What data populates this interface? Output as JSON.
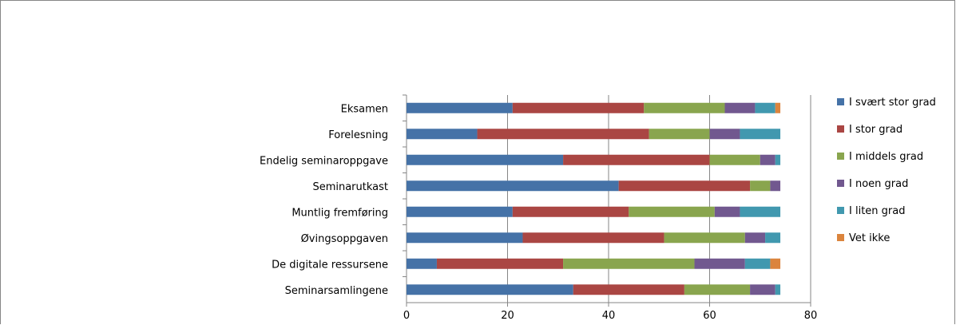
{
  "chart_data": {
    "type": "bar",
    "orientation": "horizontal",
    "stacked": true,
    "categories": [
      "Eksamen",
      "Forelesning",
      "Endelig seminaroppgave",
      "Seminarutkast",
      "Muntlig fremføring",
      "Øvingsoppgaven",
      "De digitale ressursene",
      "Seminarsamlingene"
    ],
    "series": [
      {
        "name": "I svært stor grad",
        "color": "#4572A7",
        "values": [
          21,
          14,
          31,
          42,
          21,
          23,
          6,
          33
        ]
      },
      {
        "name": "I stor grad",
        "color": "#AA4643",
        "values": [
          26,
          34,
          29,
          26,
          23,
          28,
          25,
          22
        ]
      },
      {
        "name": "I middels grad",
        "color": "#89A54E",
        "values": [
          16,
          12,
          10,
          4,
          17,
          16,
          26,
          13
        ]
      },
      {
        "name": "I noen grad",
        "color": "#71588F",
        "values": [
          6,
          6,
          3,
          2,
          5,
          4,
          10,
          5
        ]
      },
      {
        "name": "I liten grad",
        "color": "#4198AF",
        "values": [
          4,
          8,
          1,
          0,
          8,
          3,
          5,
          1
        ]
      },
      {
        "name": "Vet ikke",
        "color": "#DB843D",
        "values": [
          1,
          0,
          0,
          0,
          0,
          0,
          2,
          0
        ]
      }
    ],
    "xlim": [
      0,
      80
    ],
    "xticks": [
      "0",
      "20",
      "40",
      "60",
      "80"
    ],
    "grid": "vertical",
    "legend": "right",
    "title": "",
    "xlabel": "",
    "ylabel": ""
  }
}
